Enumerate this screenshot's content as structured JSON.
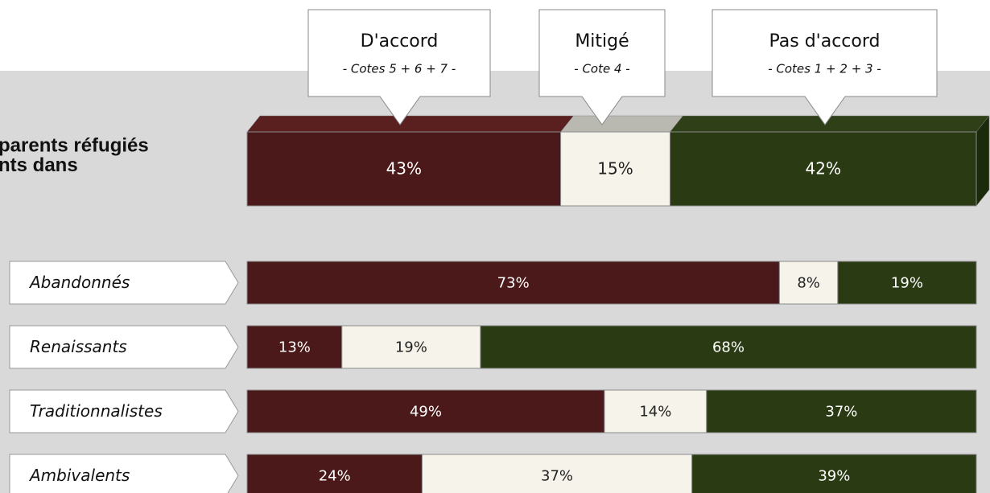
{
  "chart_data": {
    "type": "bar",
    "orientation": "horizontal",
    "stacked": true,
    "title_lines": [
      "parents réfugiés",
      "nts dans"
    ],
    "categories": [
      null,
      "Abandonnés",
      "Renaissants",
      "Traditionnalistes",
      "Ambivalents"
    ],
    "series": [
      {
        "name": "D'accord",
        "subtitle": "- Cotes 5 + 6 + 7 -",
        "color": "#4b1919",
        "text_color": "#ffffff",
        "values": [
          43,
          73,
          13,
          49,
          24
        ],
        "value_labels": [
          "43%",
          "73%",
          "13%",
          "49%",
          "24%"
        ]
      },
      {
        "name": "Mitigé",
        "subtitle": "- Cote 4 -",
        "color": "#f6f3ea",
        "text_color": "#222222",
        "values": [
          15,
          8,
          19,
          14,
          37
        ],
        "value_labels": [
          "15%",
          "8%",
          "19%",
          "14%",
          "37%"
        ]
      },
      {
        "name": "Pas d'accord",
        "subtitle": "- Cotes 1 + 2 + 3 -",
        "color": "#2a3b14",
        "text_color": "#ffffff",
        "values": [
          42,
          19,
          68,
          37,
          39
        ],
        "value_labels": [
          "42%",
          "19%",
          "68%",
          "37%",
          "39%"
        ]
      }
    ]
  }
}
